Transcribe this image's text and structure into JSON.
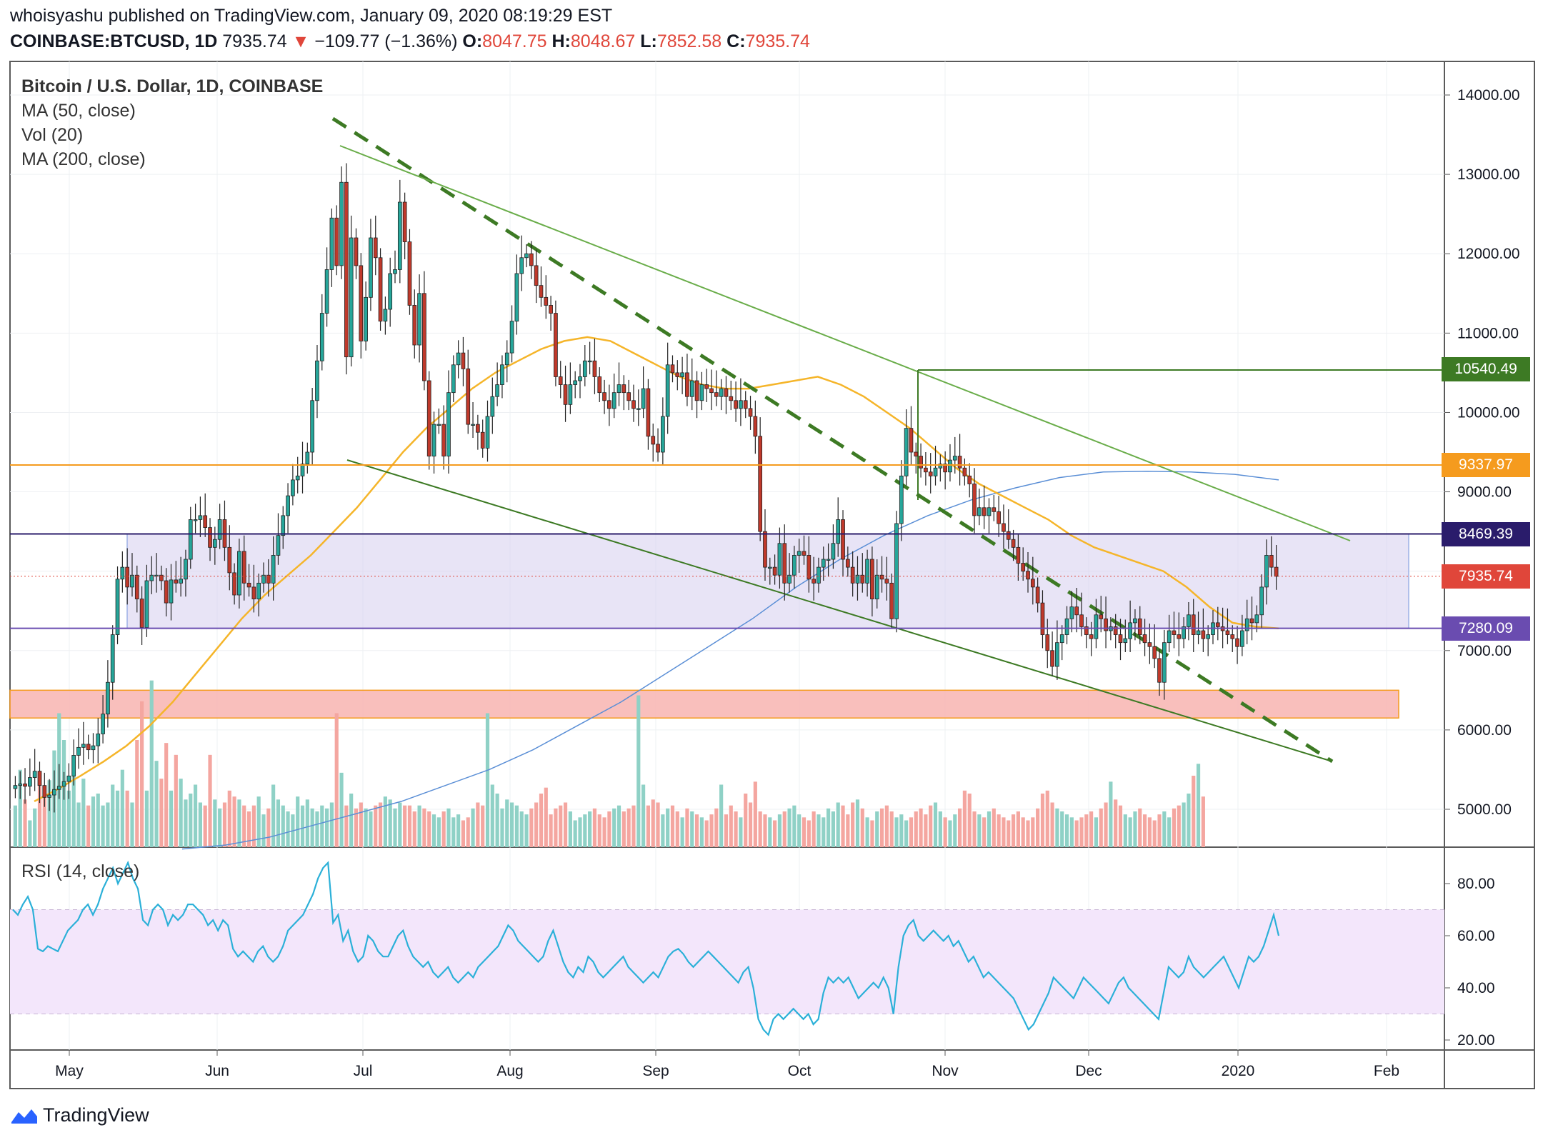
{
  "header": {
    "publish_line": "whoisyashu published on TradingView.com, January 09, 2020 08:19:29 EST",
    "symbol": "COINBASE:BTCUSD, 1D",
    "last": "7935.74",
    "change": "−109.77 (−1.36%)",
    "o_label": "O:",
    "o_value": "8047.75",
    "h_label": "H:",
    "h_value": "8048.67",
    "l_label": "L:",
    "l_value": "7852.58",
    "c_label": "C:",
    "c_value": "7935.74"
  },
  "legend": {
    "title": "Bitcoin / U.S. Dollar, 1D, COINBASE",
    "ma50": "MA (50, close)",
    "vol": "Vol (20)",
    "ma200": "MA (200, close)",
    "rsi": "RSI (14, close)"
  },
  "footer": {
    "brand": "TradingView"
  },
  "colors": {
    "up": "#26a69a",
    "down": "#c0392b",
    "vol_up": "#8fd1c6",
    "vol_down": "#f4a6a0",
    "ma50": "#f5b52a",
    "ma200": "#5b8fd6",
    "rsi": "#2bb0d8",
    "trend": "#3d7a24"
  },
  "chart_data": {
    "type": "candlestick",
    "price_axis": {
      "min": 4500,
      "max": 14400,
      "ticks": [
        "14000.00",
        "13000.00",
        "12000.00",
        "11000.00",
        "10000.00",
        "9000.00",
        "8000.00",
        "7000.00",
        "6000.00",
        "5000.00"
      ]
    },
    "rsi_axis": {
      "min": 15,
      "max": 92,
      "ticks": [
        "80.00",
        "60.00",
        "40.00",
        "20.00"
      ],
      "band": [
        30,
        70
      ]
    },
    "time_axis": {
      "labels": [
        "May",
        "Jun",
        "Jul",
        "Aug",
        "Sep",
        "Oct",
        "Nov",
        "Dec",
        "2020",
        "Feb"
      ]
    },
    "price_tags": [
      {
        "name": "resistance-10540",
        "label": "10540.49",
        "value": 10540.49,
        "color": "#3d7a24"
      },
      {
        "name": "level-9337",
        "label": "9337.97",
        "value": 9337.97,
        "color": "#f59b1e"
      },
      {
        "name": "level-8469",
        "label": "8469.39",
        "value": 8469.39,
        "color": "#2a1c6b"
      },
      {
        "name": "last-price",
        "label": "7935.74",
        "value": 7935.74,
        "color": "#e0463a"
      },
      {
        "name": "level-7280",
        "label": "7280.09",
        "value": 7280.09,
        "color": "#6a4cb0"
      }
    ],
    "zones": [
      {
        "name": "range-zone",
        "from": 7280.09,
        "to": 8469.39,
        "color": "#d9d2f0"
      },
      {
        "name": "support-zone",
        "from": 6150,
        "to": 6500,
        "color": "#f8b4b0"
      }
    ],
    "closes": [
      5300,
      5320,
      5290,
      5400,
      5480,
      5300,
      5150,
      5180,
      5250,
      5290,
      5350,
      5420,
      5680,
      5780,
      5820,
      5750,
      5800,
      5950,
      6200,
      6600,
      7200,
      7900,
      8050,
      7800,
      7950,
      7650,
      7290,
      7880,
      7950,
      7950,
      7880,
      7600,
      7890,
      7850,
      7900,
      8150,
      8650,
      8650,
      8700,
      8550,
      8300,
      8400,
      8650,
      8300,
      7980,
      7700,
      8250,
      7850,
      7800,
      7650,
      7850,
      7950,
      7850,
      8200,
      8450,
      8700,
      8950,
      9150,
      9200,
      9350,
      9500,
      10150,
      10650,
      11250,
      11800,
      12450,
      11850,
      12900,
      10700,
      12200,
      11850,
      10900,
      11450,
      12200,
      11950,
      11150,
      11300,
      11750,
      11800,
      12650,
      12150,
      11350,
      10850,
      11500,
      10400,
      9450,
      9850,
      9850,
      9450,
      10250,
      10600,
      10750,
      10550,
      9850,
      9850,
      9750,
      9550,
      9950,
      10200,
      10350,
      10600,
      10750,
      11150,
      11750,
      11950,
      12000,
      11850,
      11600,
      11450,
      11350,
      11250,
      10450,
      10350,
      10100,
      10350,
      10400,
      10450,
      10650,
      10650,
      10450,
      10250,
      10150,
      10050,
      10250,
      10350,
      10250,
      10150,
      10050,
      10050,
      10300,
      9700,
      9600,
      9500,
      9950,
      10600,
      10500,
      10450,
      10500,
      10200,
      10400,
      10150,
      10350,
      10300,
      10250,
      10200,
      10300,
      10200,
      10150,
      10050,
      10150,
      10050,
      9950,
      9700,
      8500,
      8050,
      8050,
      7950,
      8350,
      7850,
      7950,
      8200,
      8250,
      8200,
      7900,
      7850,
      8050,
      8150,
      8150,
      8350,
      8650,
      8150,
      8050,
      7850,
      7950,
      7850,
      8150,
      7650,
      7950,
      7900,
      7850,
      7400,
      8600,
      9200,
      9800,
      9500,
      9450,
      9300,
      9250,
      9200,
      9300,
      9350,
      9250,
      9400,
      9450,
      9300,
      9200,
      9100,
      8700,
      8800,
      8700,
      8800,
      8750,
      8600,
      8500,
      8400,
      8300,
      8100,
      8000,
      7900,
      7800,
      7600,
      7200,
      7000,
      6800,
      7100,
      7200,
      7400,
      7550,
      7450,
      7300,
      7200,
      7150,
      7450,
      7400,
      7250,
      7300,
      7200,
      7100,
      7150,
      7350,
      7400,
      7200,
      7100,
      7050,
      6900,
      6600,
      7100,
      7250,
      7200,
      7150,
      7300,
      7450,
      7200,
      7250,
      7150,
      7200,
      7350,
      7300,
      7250,
      7200,
      7150,
      7050,
      7250,
      7400,
      7350,
      7450,
      7800,
      8200,
      8050,
      7935
    ],
    "ma50": [
      5100,
      5250,
      5420,
      5600,
      5800,
      6050,
      6350,
      6700,
      7050,
      7400,
      7700,
      7950,
      8200,
      8500,
      8800,
      9150,
      9500,
      9800,
      10050,
      10300,
      10500,
      10650,
      10800,
      10900,
      10950,
      10900,
      10750,
      10600,
      10450,
      10350,
      10300,
      10300,
      10350,
      10400,
      10450,
      10350,
      10200,
      10000,
      9800,
      9550,
      9300,
      9100,
      8950,
      8800,
      8650,
      8450,
      8300,
      8200,
      8100,
      8000,
      7800,
      7550,
      7350,
      7300,
      7280
    ],
    "ma200": [
      4500,
      4550,
      4650,
      4800,
      4950,
      5100,
      5300,
      5500,
      5750,
      6050,
      6350,
      6700,
      7050,
      7400,
      7800,
      8150,
      8450,
      8700,
      8900,
      9050,
      9180,
      9250,
      9260,
      9250,
      9220,
      9150
    ],
    "volume": [
      280,
      520,
      320,
      180,
      260,
      420,
      380,
      450,
      650,
      900,
      720,
      380,
      540,
      300,
      460,
      280,
      340,
      360,
      280,
      300,
      420,
      380,
      520,
      380,
      300,
      720,
      980,
      380,
      1120,
      580,
      460,
      700,
      380,
      620,
      460,
      320,
      360,
      420,
      300,
      280,
      620,
      320,
      260,
      300,
      380,
      340,
      320,
      280,
      240,
      280,
      340,
      220,
      260,
      420,
      320,
      280,
      240,
      220,
      340,
      280,
      320,
      260,
      240,
      280,
      260,
      300,
      900,
      500,
      280,
      360,
      260,
      300,
      260,
      240,
      280,
      300,
      340,
      320,
      260,
      300,
      280,
      280,
      240,
      280,
      260,
      240,
      220,
      200,
      240,
      260,
      200,
      220,
      180,
      200,
      260,
      300,
      280,
      900,
      420,
      360,
      260,
      320,
      300,
      280,
      240,
      220,
      260,
      300,
      360,
      400,
      220,
      260,
      280,
      300,
      240,
      180,
      200,
      220,
      240,
      260,
      220,
      200,
      240,
      260,
      280,
      240,
      260,
      280,
      1020,
      420,
      280,
      320,
      300,
      220,
      260,
      280,
      240,
      200,
      260,
      240,
      220,
      200,
      180,
      220,
      260,
      420,
      220,
      280,
      240,
      200,
      360,
      300,
      440,
      240,
      220,
      200,
      180,
      220,
      240,
      260,
      280,
      220,
      200,
      180,
      240,
      220,
      200,
      260,
      240,
      300,
      280,
      220,
      300,
      320,
      260,
      200,
      180,
      240,
      260,
      280,
      240,
      200,
      220,
      180,
      200,
      240,
      260,
      220,
      280,
      300,
      240,
      200,
      180,
      220,
      260,
      380,
      360,
      240,
      220,
      200,
      240,
      260,
      220,
      200,
      180,
      220,
      240,
      200,
      180,
      200,
      260,
      360,
      380,
      300,
      260,
      240,
      220,
      200,
      180,
      200,
      220,
      240,
      200,
      260,
      300,
      440,
      320,
      280,
      220,
      200,
      240,
      260,
      220,
      200,
      180,
      220,
      240,
      200,
      260,
      280,
      300,
      360,
      480,
      560,
      340
    ],
    "rsi": [
      70,
      68,
      72,
      75,
      70,
      55,
      54,
      56,
      55,
      54,
      58,
      62,
      64,
      66,
      70,
      72,
      68,
      72,
      78,
      82,
      86,
      80,
      84,
      88,
      82,
      78,
      66,
      64,
      70,
      72,
      70,
      64,
      68,
      66,
      68,
      72,
      72,
      70,
      68,
      64,
      66,
      62,
      66,
      64,
      55,
      52,
      54,
      52,
      50,
      54,
      56,
      52,
      50,
      52,
      56,
      62,
      64,
      66,
      68,
      72,
      76,
      82,
      86,
      88,
      65,
      68,
      58,
      62,
      54,
      50,
      52,
      60,
      58,
      54,
      52,
      52,
      56,
      60,
      62,
      56,
      52,
      50,
      48,
      50,
      46,
      44,
      46,
      48,
      44,
      42,
      44,
      46,
      44,
      48,
      50,
      52,
      54,
      56,
      60,
      64,
      62,
      58,
      56,
      54,
      52,
      50,
      52,
      58,
      62,
      56,
      50,
      46,
      44,
      48,
      46,
      52,
      50,
      46,
      44,
      46,
      48,
      50,
      52,
      48,
      46,
      44,
      42,
      44,
      46,
      44,
      48,
      52,
      54,
      55,
      53,
      50,
      48,
      50,
      52,
      54,
      52,
      50,
      48,
      46,
      44,
      42,
      46,
      48,
      40,
      28,
      24,
      22,
      28,
      30,
      28,
      30,
      32,
      30,
      28,
      30,
      26,
      28,
      38,
      44,
      42,
      44,
      42,
      44,
      40,
      36,
      38,
      40,
      42,
      40,
      44,
      40,
      30,
      48,
      60,
      64,
      66,
      60,
      58,
      60,
      62,
      60,
      58,
      60,
      56,
      58,
      54,
      50,
      52,
      48,
      44,
      46,
      44,
      42,
      40,
      38,
      36,
      32,
      28,
      24,
      26,
      30,
      34,
      38,
      44,
      42,
      40,
      38,
      36,
      40,
      44,
      42,
      40,
      38,
      36,
      34,
      38,
      42,
      44,
      40,
      38,
      36,
      34,
      32,
      30,
      28,
      38,
      48,
      46,
      44,
      46,
      52,
      48,
      46,
      44,
      46,
      48,
      50,
      52,
      48,
      44,
      40,
      46,
      52,
      50,
      52,
      56,
      62,
      68,
      60
    ]
  }
}
